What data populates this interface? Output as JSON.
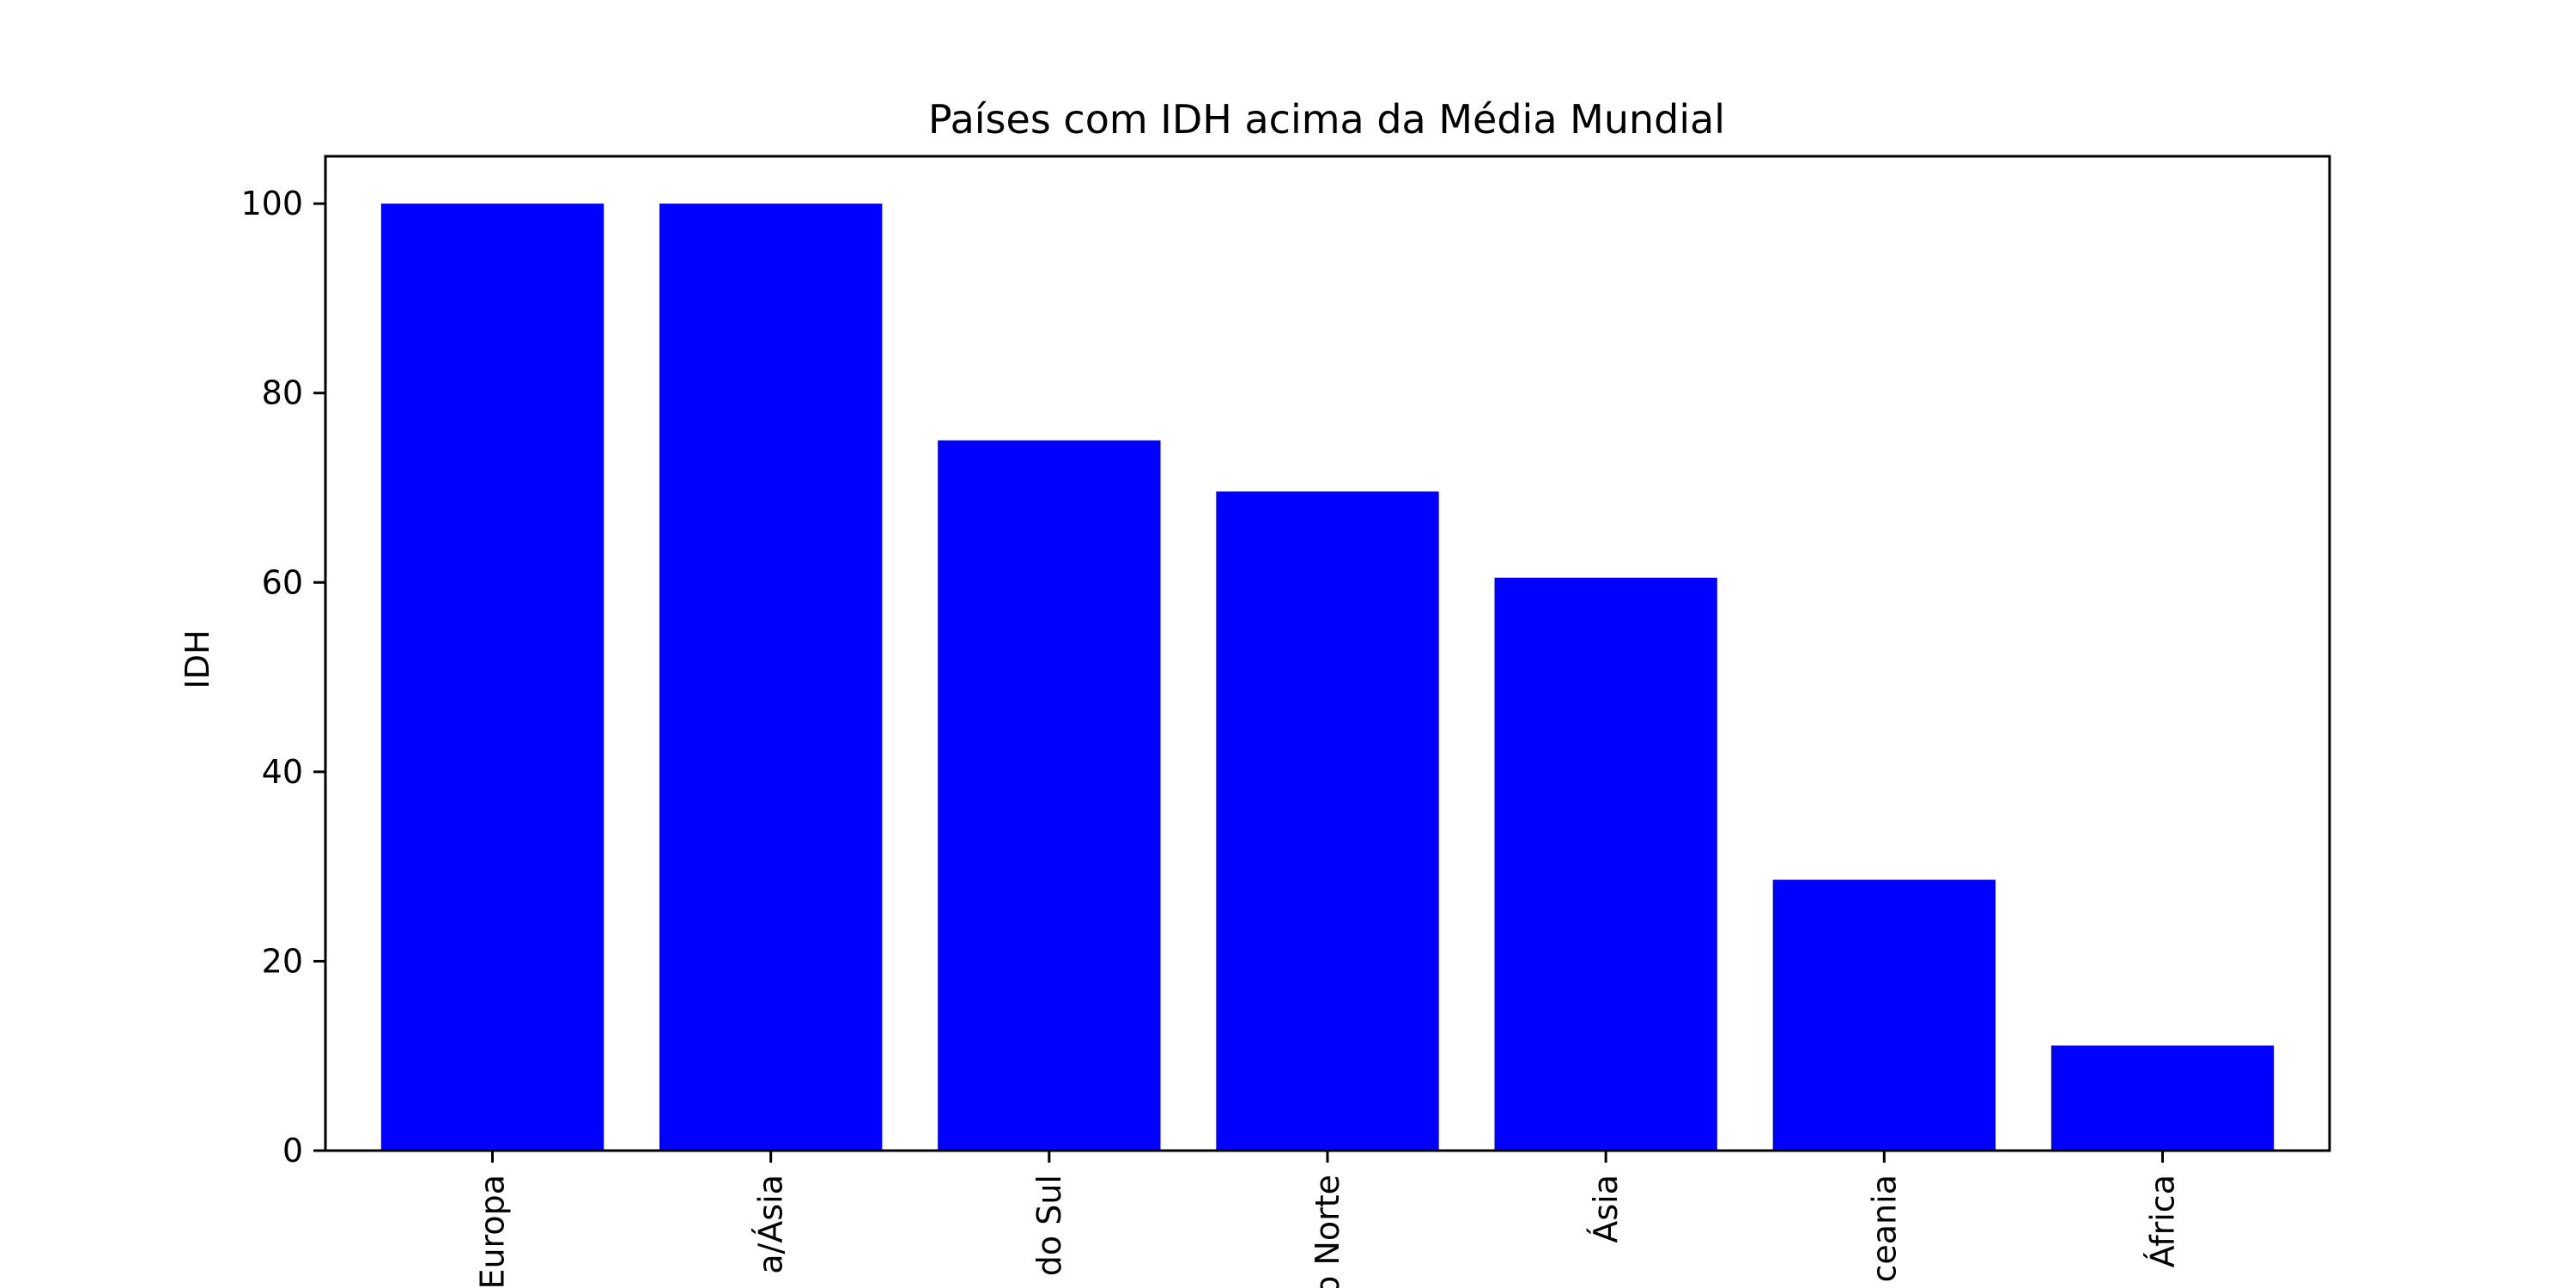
{
  "chart_data": {
    "type": "bar",
    "title": "Países com IDH acima da Média Mundial",
    "xlabel": "",
    "ylabel": "IDH",
    "categories": [
      "Europa",
      "Europa/Ásia",
      "América do Sul",
      "América do Norte",
      "Ásia",
      "Oceania",
      "África"
    ],
    "tick_labels_visible": [
      "Europa",
      "a/Ásia",
      "do Sul",
      "o Norte",
      "Ásia",
      "ceania",
      "África"
    ],
    "values": [
      100.0,
      100.0,
      75.0,
      69.6,
      60.5,
      28.6,
      11.1
    ],
    "ylim": [
      0,
      105
    ],
    "yticks": [
      0,
      20,
      40,
      60,
      80,
      100
    ],
    "bar_color": "#0000ff",
    "grid": false,
    "legend": "none"
  }
}
